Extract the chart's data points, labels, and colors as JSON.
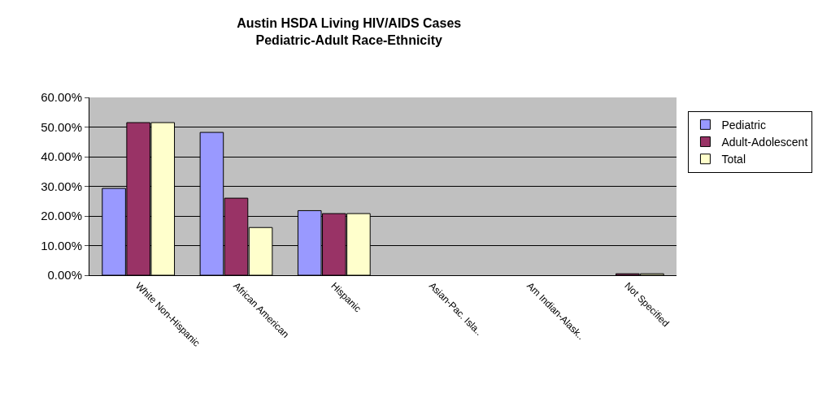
{
  "chart_data": {
    "type": "bar",
    "title": "Austin HSDA Living HIV/AIDS Cases\nPediatric-Adult Race-Ethnicity",
    "categories": [
      "White Non-Hispanic",
      "African American",
      "Hispanic",
      "Asian-Pac. Isla..",
      "Am Indian-Alask..",
      "Not Specified"
    ],
    "series": [
      {
        "name": "Pediatric",
        "color": "#9999ff",
        "values": [
          29.3,
          48.2,
          21.8,
          0,
          0,
          0
        ]
      },
      {
        "name": "Adult-Adolescent",
        "color": "#993366",
        "values": [
          51.5,
          26.0,
          20.8,
          0,
          0,
          0.5
        ]
      },
      {
        "name": "Total",
        "color": "#ffffcc",
        "values": [
          51.5,
          16.1,
          20.8,
          0,
          0,
          0.5
        ]
      }
    ],
    "ylim": [
      0,
      60
    ],
    "yticks": [
      {
        "value": 0,
        "label": "0.00%"
      },
      {
        "value": 10,
        "label": "10.00%"
      },
      {
        "value": 20,
        "label": "20.00%"
      },
      {
        "value": 30,
        "label": "30.00%"
      },
      {
        "value": 40,
        "label": "40.00%"
      },
      {
        "value": 50,
        "label": "50.00%"
      },
      {
        "value": 60,
        "label": "60.00%"
      }
    ],
    "grid": "y",
    "legend": "right"
  }
}
